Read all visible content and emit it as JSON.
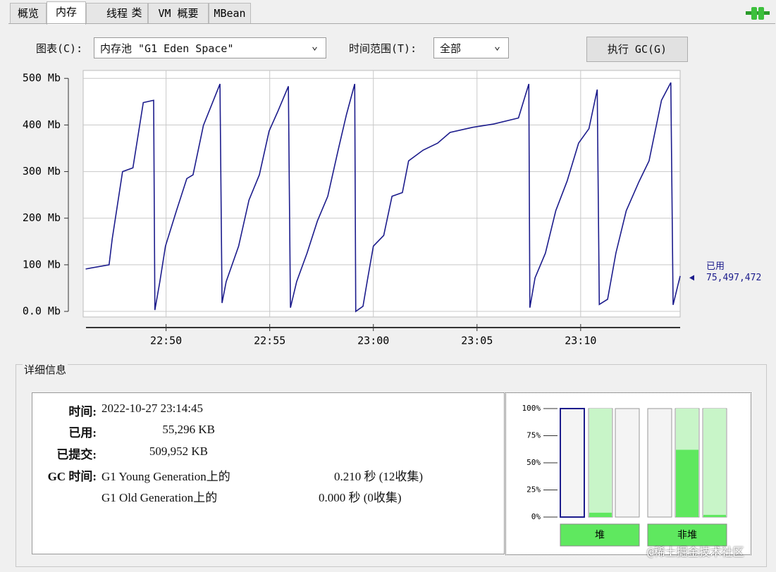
{
  "tabs": [
    "概览",
    "内存",
    "线程",
    "类",
    "VM 概要",
    "MBean"
  ],
  "controls": {
    "chart_label": "图表(C):",
    "chart_select": "内存池 \"G1 Eden Space\"",
    "range_label": "时间范围(T):",
    "range_select": "全部",
    "gc_button": "执行 GC(G)"
  },
  "chart_data": [
    {
      "type": "line",
      "x": [
        1366.12,
        1367.25,
        1367.4,
        1367.9,
        1368.4,
        1368.9,
        1369.4,
        1369.46,
        1369.7,
        1369.97,
        1370.5,
        1371.0,
        1371.3,
        1371.8,
        1372.6,
        1372.7,
        1372.9,
        1373.5,
        1374.0,
        1374.5,
        1374.97,
        1375.4,
        1375.9,
        1376.0,
        1376.3,
        1376.8,
        1377.3,
        1377.8,
        1378.3,
        1378.7,
        1379.1,
        1379.15,
        1379.5,
        1379.7,
        1380.0,
        1380.5,
        1380.9,
        1381.4,
        1381.7,
        1382.4,
        1383.1,
        1383.7,
        1384.8,
        1385.8,
        1387.0,
        1387.5,
        1387.55,
        1387.8,
        1388.3,
        1388.8,
        1389.35,
        1389.9,
        1390.4,
        1390.8,
        1390.9,
        1391.3,
        1391.7,
        1392.2,
        1392.8,
        1393.3,
        1393.9,
        1394.35,
        1394.46,
        1394.8
      ],
      "series": [
        {
          "name": "已用",
          "color": "#1c1c8c",
          "values": [
            91,
            100,
            155,
            300,
            308,
            448,
            453,
            3,
            64,
            140,
            216,
            285,
            293,
            399,
            488,
            18,
            64,
            140,
            239,
            293,
            387,
            430,
            483,
            8,
            64,
            125,
            194,
            247,
            346,
            422,
            488,
            0,
            11,
            64,
            140,
            163,
            247,
            255,
            323,
            346,
            361,
            384,
            395,
            402,
            415,
            488,
            8,
            72,
            125,
            216,
            280,
            361,
            392,
            476,
            15,
            26,
            125,
            216,
            277,
            323,
            453,
            491,
            14,
            76
          ]
        }
      ],
      "annotation": {
        "value": 72,
        "label": "75,497,472"
      },
      "xlim": [
        1366,
        1394.8
      ],
      "ylim": [
        -12,
        517
      ],
      "xticks": [
        {
          "value": 1370,
          "label": "22:50"
        },
        {
          "value": 1375,
          "label": "22:55"
        },
        {
          "value": 1380,
          "label": "23:00"
        },
        {
          "value": 1385,
          "label": "23:05"
        },
        {
          "value": 1390,
          "label": "23:10"
        }
      ],
      "yticks": [
        {
          "value": 0,
          "label": "0.0 Mb"
        },
        {
          "value": 100,
          "label": "100 Mb"
        },
        {
          "value": 200,
          "label": "200 Mb"
        },
        {
          "value": 300,
          "label": "300 Mb"
        },
        {
          "value": 400,
          "label": "400 Mb"
        },
        {
          "value": 500,
          "label": "500 Mb"
        }
      ],
      "grid": true
    },
    {
      "type": "bar",
      "categories": [
        null,
        null,
        null,
        null,
        null,
        null
      ],
      "values": [
        0,
        4,
        0,
        0,
        62,
        2
      ],
      "committed": [
        0,
        100,
        0,
        0,
        100,
        100
      ],
      "color": "#5fe85f",
      "groups": [
        "堆",
        "非堆"
      ],
      "ylim": [
        0,
        100
      ],
      "yticks": [
        {
          "value": 0,
          "label": "0%"
        },
        {
          "value": 25,
          "label": "25%"
        },
        {
          "value": 50,
          "label": "50%"
        },
        {
          "value": 75,
          "label": "75%"
        },
        {
          "value": 100,
          "label": "100%"
        }
      ]
    }
  ],
  "details": {
    "title": "详细信息",
    "rows": [
      [
        "时间:",
        "2022-10-27 23:14:45"
      ],
      [
        "已用:",
        "55,296 KB"
      ],
      [
        "已提交:",
        "509,952 KB"
      ]
    ],
    "gc_label": "GC 时间:",
    "gc_rows": [
      [
        "G1 Young Generation上的",
        "0.210 秒 (12收集)"
      ],
      [
        "G1 Old Generation上的",
        "0.000 秒 (0收集)"
      ]
    ]
  },
  "watermark": "@稀土掘金技术社区"
}
